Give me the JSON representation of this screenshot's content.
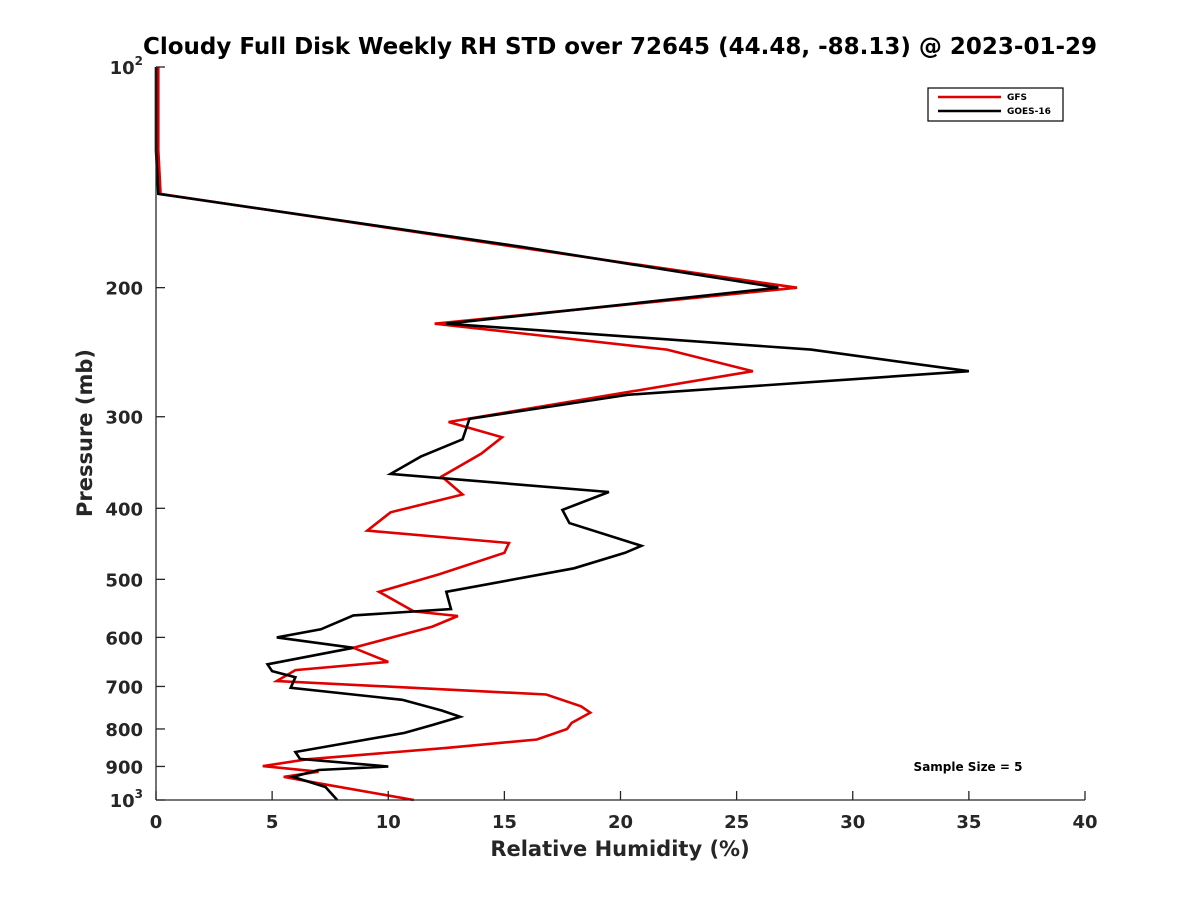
{
  "chart_data": {
    "type": "line",
    "title": "Cloudy Full Disk Weekly RH STD over 72645 (44.48, -88.13) @ 2023-01-29",
    "xlabel": "Relative Humidity (%)",
    "ylabel": "Pressure (mb)",
    "xlim": [
      0,
      40
    ],
    "ylim": [
      100,
      1000
    ],
    "yscale": "log",
    "y_reversed": true,
    "x_ticks": [
      "0",
      "5",
      "10",
      "15",
      "20",
      "25",
      "30",
      "35",
      "40"
    ],
    "y_ticks": [
      {
        "value": 100,
        "base": "10",
        "exp": "2"
      },
      {
        "value": 200,
        "label": "200"
      },
      {
        "value": 300,
        "label": "300"
      },
      {
        "value": 400,
        "label": "400"
      },
      {
        "value": 500,
        "label": "500"
      },
      {
        "value": 600,
        "label": "600"
      },
      {
        "value": 700,
        "label": "700"
      },
      {
        "value": 800,
        "label": "800"
      },
      {
        "value": 900,
        "label": "900"
      },
      {
        "value": 1000,
        "base": "10",
        "exp": "3"
      }
    ],
    "legend_position": "top-right",
    "grid": false,
    "annotation": "Sample Size = 5",
    "series": [
      {
        "name": "GFS",
        "color": "#e00000",
        "points": [
          [
            0.1,
            100
          ],
          [
            0.1,
            130
          ],
          [
            0.2,
            149
          ],
          [
            15.5,
            176
          ],
          [
            27.6,
            200
          ],
          [
            12.0,
            224
          ],
          [
            22.0,
            243
          ],
          [
            25.7,
            260
          ],
          [
            12.6,
            305
          ],
          [
            14.9,
            320
          ],
          [
            14.0,
            337
          ],
          [
            12.3,
            362
          ],
          [
            13.2,
            383
          ],
          [
            10.1,
            405
          ],
          [
            9.1,
            429
          ],
          [
            15.2,
            446
          ],
          [
            15.0,
            460
          ],
          [
            12.2,
            492
          ],
          [
            9.6,
            520
          ],
          [
            11.1,
            553
          ],
          [
            13.0,
            561
          ],
          [
            11.9,
            580
          ],
          [
            8.5,
            620
          ],
          [
            10.0,
            648
          ],
          [
            6.0,
            665
          ],
          [
            5.2,
            688
          ],
          [
            16.8,
            718
          ],
          [
            18.3,
            745
          ],
          [
            18.7,
            760
          ],
          [
            17.9,
            785
          ],
          [
            17.7,
            800
          ],
          [
            16.4,
            827
          ],
          [
            12.5,
            849
          ],
          [
            6.5,
            880
          ],
          [
            4.6,
            899
          ],
          [
            7.0,
            915
          ],
          [
            5.5,
            930
          ],
          [
            7.1,
            950
          ],
          [
            11.1,
            1000
          ]
        ]
      },
      {
        "name": "GOES-16",
        "color": "#000000",
        "points": [
          [
            0.0,
            100
          ],
          [
            0.0,
            130
          ],
          [
            0.1,
            149
          ],
          [
            15.8,
            176
          ],
          [
            26.8,
            200
          ],
          [
            12.5,
            224
          ],
          [
            28.2,
            243
          ],
          [
            35.0,
            260
          ],
          [
            20.3,
            280
          ],
          [
            13.5,
            302
          ],
          [
            13.2,
            322
          ],
          [
            11.4,
            340
          ],
          [
            10.1,
            359
          ],
          [
            19.5,
            380
          ],
          [
            17.5,
            402
          ],
          [
            17.8,
            419
          ],
          [
            20.9,
            450
          ],
          [
            20.2,
            460
          ],
          [
            18.0,
            483
          ],
          [
            12.5,
            520
          ],
          [
            12.7,
            549
          ],
          [
            8.5,
            560
          ],
          [
            7.1,
            585
          ],
          [
            5.2,
            600
          ],
          [
            8.5,
            620
          ],
          [
            4.8,
            653
          ],
          [
            5.0,
            667
          ],
          [
            6.0,
            680
          ],
          [
            5.8,
            703
          ],
          [
            10.6,
            730
          ],
          [
            12.3,
            755
          ],
          [
            13.1,
            770
          ],
          [
            11.9,
            790
          ],
          [
            10.7,
            810
          ],
          [
            6.0,
            860
          ],
          [
            6.2,
            879
          ],
          [
            10.0,
            900
          ],
          [
            7.0,
            910
          ],
          [
            5.9,
            930
          ],
          [
            7.3,
            960
          ],
          [
            7.8,
            1000
          ]
        ]
      }
    ]
  }
}
